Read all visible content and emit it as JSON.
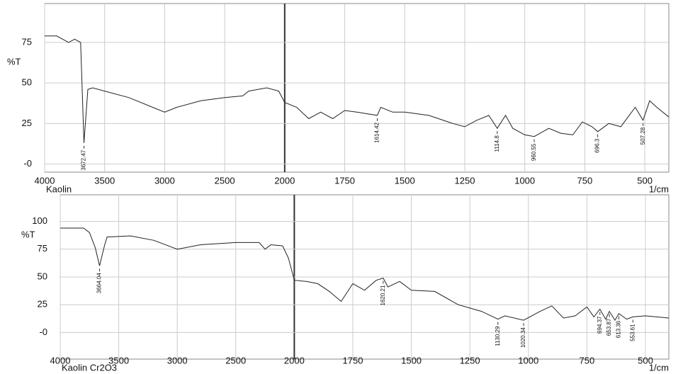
{
  "chart_data": [
    {
      "type": "line",
      "x_label": "1/cm",
      "sample_label": "Kaolin",
      "y_label": "%T",
      "color": "#222222",
      "xlim": [
        4000,
        400
      ],
      "x_break": 2000,
      "x_break_ratio": 2,
      "xticks": [
        4000,
        3500,
        3000,
        2500,
        2000,
        1750,
        1500,
        1250,
        1000,
        750,
        500
      ],
      "ylim": [
        -5,
        99
      ],
      "yticks": [
        {
          "value": 0,
          "label": "-0"
        },
        25,
        50,
        75
      ],
      "grid": true,
      "x": [
        4000,
        3900,
        3850,
        3800,
        3750,
        3700,
        3672.47,
        3640,
        3600,
        3500,
        3300,
        3100,
        3000,
        2900,
        2700,
        2500,
        2350,
        2300,
        2150,
        2050,
        2000,
        1950,
        1900,
        1850,
        1800,
        1750,
        1700,
        1614.42,
        1600,
        1550,
        1500,
        1400,
        1300,
        1250,
        1200,
        1150,
        1114.8,
        1080,
        1050,
        1000,
        960.55,
        900,
        850,
        800,
        760,
        720,
        696.3,
        650,
        600,
        540,
        507.28,
        480,
        450,
        400
      ],
      "values": [
        79,
        79,
        77,
        75,
        77,
        75,
        13,
        46,
        47,
        45,
        41,
        35,
        32,
        35,
        39,
        41,
        42,
        45,
        47,
        45,
        38,
        35,
        28,
        32,
        28,
        33,
        32,
        30,
        35,
        32,
        32,
        30,
        25,
        23,
        27,
        30,
        22,
        30,
        22,
        18,
        17,
        22,
        19,
        18,
        26,
        23,
        20,
        25,
        23,
        35,
        27,
        39,
        35,
        29
      ],
      "peaks": [
        3672.47,
        1614.42,
        1114.8,
        960.55,
        696.3,
        507.28
      ]
    },
    {
      "type": "line",
      "x_label": "1/cm",
      "sample_label": "Kaolin Cr2O3",
      "y_label": "%T",
      "color": "#222222",
      "xlim": [
        4000,
        400
      ],
      "x_break": 2000,
      "x_break_ratio": 2,
      "xticks": [
        4000,
        3500,
        3000,
        2500,
        2000,
        1750,
        1500,
        1250,
        1000,
        750,
        500
      ],
      "ylim": [
        -24,
        124
      ],
      "yticks": [
        {
          "value": 0,
          "label": "-0"
        },
        25,
        50,
        75,
        100
      ],
      "grid": true,
      "x": [
        4000,
        3800,
        3750,
        3700,
        3664.04,
        3620,
        3600,
        3400,
        3200,
        3000,
        2800,
        2500,
        2300,
        2250,
        2200,
        2100,
        2050,
        2000,
        1950,
        1900,
        1850,
        1800,
        1750,
        1700,
        1650,
        1620.21,
        1600,
        1550,
        1500,
        1400,
        1300,
        1250,
        1200,
        1130.29,
        1100,
        1020.34,
        950,
        900,
        850,
        800,
        750,
        720,
        694.37,
        670,
        653.87,
        630,
        613.36,
        580,
        553.61,
        500,
        400
      ],
      "values": [
        94,
        94,
        90,
        76,
        60,
        79,
        86,
        87,
        83,
        75,
        79,
        81,
        81,
        75,
        79,
        78,
        67,
        47,
        46,
        44,
        37,
        28,
        44,
        38,
        47,
        49,
        41,
        46,
        38,
        37,
        25,
        22,
        19,
        12,
        15,
        11,
        19,
        24,
        13,
        15,
        23,
        14,
        21,
        12,
        19,
        11,
        17,
        12,
        14,
        15,
        13
      ],
      "peaks": [
        3664.04,
        1620.21,
        1130.29,
        1020.34,
        694.37,
        653.87,
        613.36,
        553.61
      ]
    }
  ]
}
